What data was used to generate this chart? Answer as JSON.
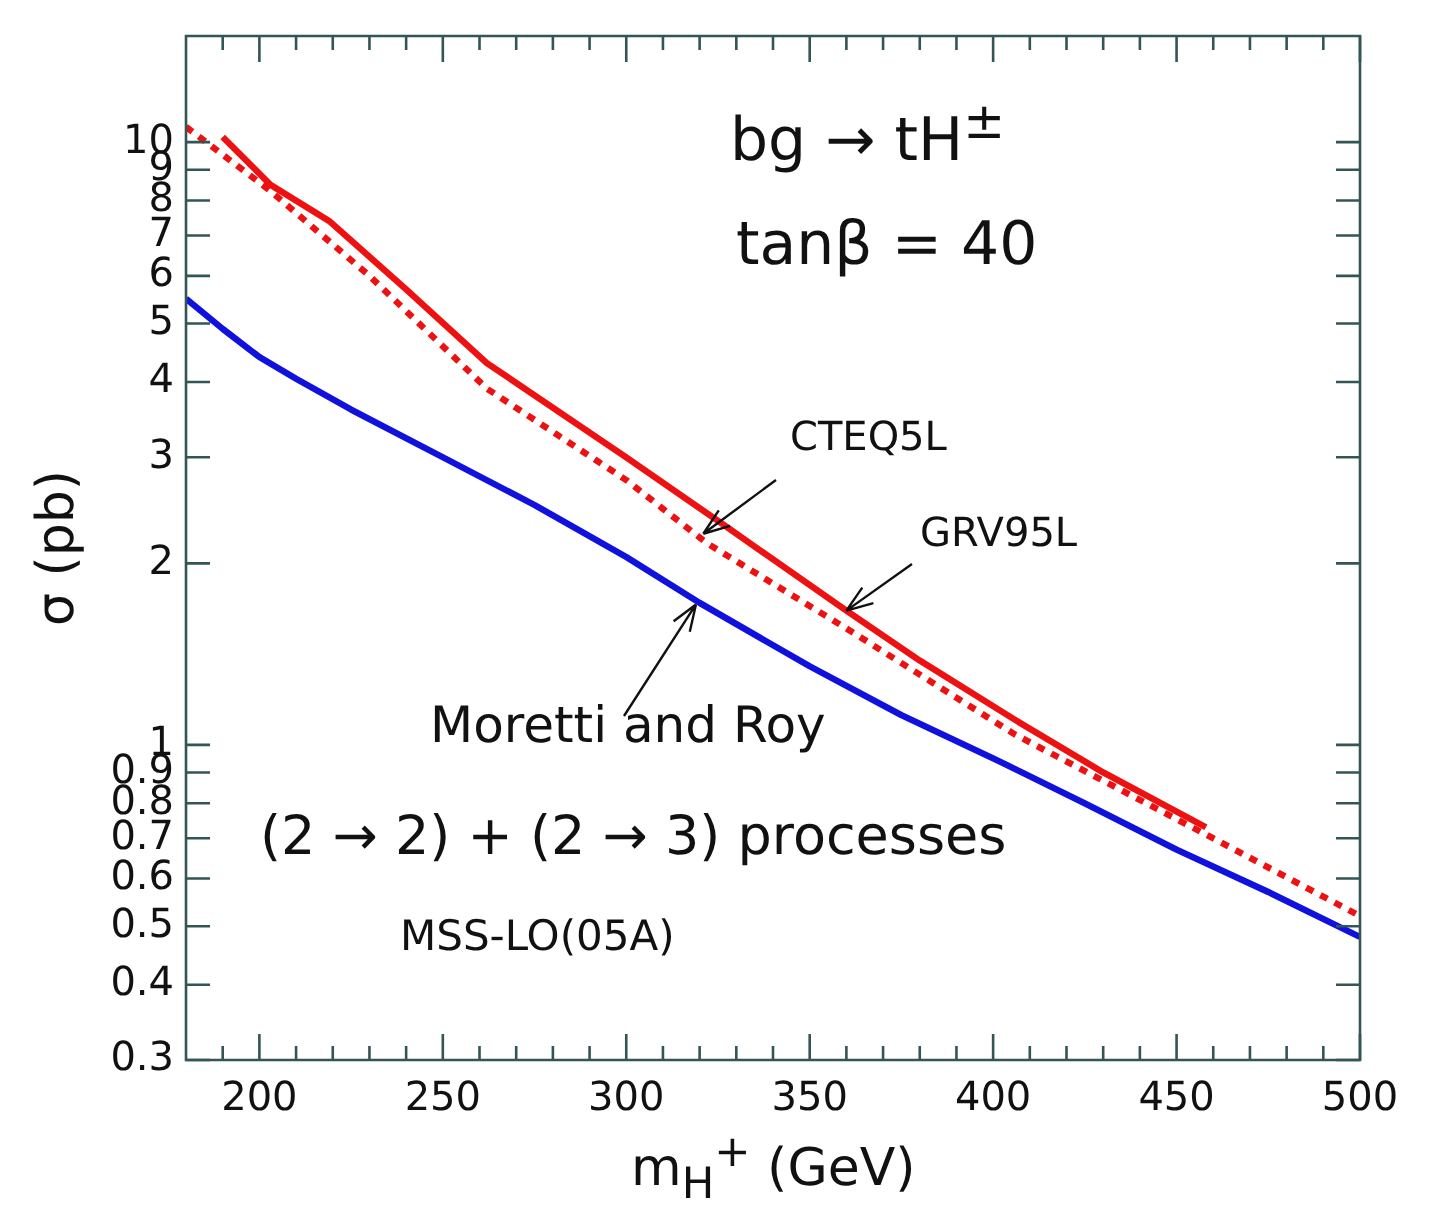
{
  "chart_data": {
    "type": "line",
    "xlabel": "m$_{H}$$^{+}$ (GeV)",
    "ylabel": "σ (pb)",
    "xlim": [
      180,
      500
    ],
    "xticks": [
      {
        "value": 190,
        "label": null
      },
      200,
      {
        "value": 210,
        "label": null
      },
      {
        "value": 220,
        "label": null
      },
      {
        "value": 230,
        "label": null
      },
      {
        "value": 240,
        "label": null
      },
      250,
      {
        "value": 260,
        "label": null
      },
      {
        "value": 270,
        "label": null
      },
      {
        "value": 280,
        "label": null
      },
      {
        "value": 290,
        "label": null
      },
      300,
      {
        "value": 310,
        "label": null
      },
      {
        "value": 320,
        "label": null
      },
      {
        "value": 330,
        "label": null
      },
      {
        "value": 340,
        "label": null
      },
      350,
      {
        "value": 360,
        "label": null
      },
      {
        "value": 370,
        "label": null
      },
      {
        "value": 380,
        "label": null
      },
      {
        "value": 390,
        "label": null
      },
      400,
      {
        "value": 410,
        "label": null
      },
      {
        "value": 420,
        "label": null
      },
      {
        "value": 430,
        "label": null
      },
      {
        "value": 440,
        "label": null
      },
      450,
      {
        "value": 460,
        "label": null
      },
      {
        "value": 470,
        "label": null
      },
      {
        "value": 480,
        "label": null
      },
      {
        "value": 490,
        "label": null
      },
      500
    ],
    "ylim": [
      0.3,
      15
    ],
    "log": "y",
    "yticks": [
      0.3,
      0.4,
      0.5,
      0.6,
      0.7,
      0.8,
      0.9,
      1,
      2,
      3,
      4,
      5,
      6,
      7,
      8,
      9,
      10
    ],
    "grid": false,
    "legend": false,
    "marker": "none",
    "series": [
      {
        "color": "#ee1111",
        "line_style": "solid",
        "x": [
          190,
          203,
          219,
          240,
          262,
          300,
          326,
          360,
          380,
          406,
          430,
          458
        ],
        "values": [
          10.2,
          8.5,
          7.4,
          5.7,
          4.3,
          3.0,
          2.33,
          1.67,
          1.38,
          1.1,
          0.9,
          0.73
        ]
      },
      {
        "color": "#ee1111",
        "line_style": "dotted",
        "x": [
          180,
          203,
          230,
          262,
          300,
          322,
          360,
          406,
          458,
          500
        ],
        "values": [
          10.6,
          8.3,
          6.0,
          3.9,
          2.75,
          2.16,
          1.56,
          1.04,
          0.71,
          0.52
        ]
      },
      {
        "color": "#1111dd",
        "line_style": "solid",
        "x": [
          180,
          190,
          200,
          210,
          225,
          250,
          275,
          300,
          320,
          350,
          375,
          400,
          425,
          450,
          475,
          500
        ],
        "values": [
          5.5,
          4.9,
          4.4,
          4.05,
          3.6,
          3.0,
          2.5,
          2.05,
          1.72,
          1.35,
          1.12,
          0.95,
          0.8,
          0.67,
          0.57,
          0.48
        ]
      }
    ],
    "annotations": [
      "bg → tH$^{±}$",
      "tanβ = 40",
      {
        "text": "CTEQ5L",
        "x": 321,
        "y": 2.24
      },
      {
        "text": "GRV95L",
        "x": 360,
        "y": 1.67
      },
      {
        "text": "Moretti and Roy",
        "x": 319,
        "y": 1.71
      },
      "(2 → 2) + (2 → 3) processes",
      "MSS-LO(05A)"
    ]
  }
}
